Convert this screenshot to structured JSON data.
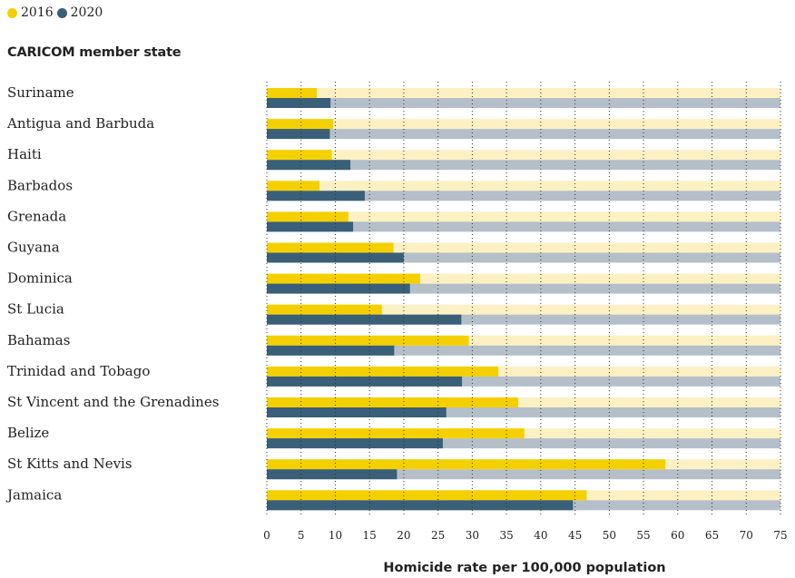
{
  "chart_data": {
    "type": "bar",
    "orientation": "horizontal",
    "category_heading": "CARICOM member state",
    "xlabel": "Homicide rate per 100,000 population",
    "xlim": [
      0,
      75
    ],
    "xticks": [
      0,
      5,
      10,
      15,
      20,
      25,
      30,
      35,
      40,
      45,
      50,
      55,
      60,
      65,
      70,
      75
    ],
    "legend_position": "top-left",
    "grid": "vertical dotted",
    "categories": [
      "Suriname",
      "Antigua and Barbuda",
      "Haiti",
      "Barbados",
      "Grenada",
      "Guyana",
      "Dominica",
      "St Lucia",
      "Bahamas",
      "Trinidad and Tobago",
      "St Vincent and the Grenadines",
      "Belize",
      "St Kitts and Nevis",
      "Jamaica"
    ],
    "series": [
      {
        "name": "2016",
        "color": "#f5d000",
        "track_color": "#fdf0c2",
        "values": [
          7.3,
          9.7,
          9.5,
          7.7,
          11.9,
          18.5,
          22.4,
          16.8,
          29.5,
          33.8,
          36.7,
          37.6,
          58.2,
          46.7
        ]
      },
      {
        "name": "2020",
        "color": "#3a5f78",
        "track_color": "#b4bfc9",
        "values": [
          9.3,
          9.2,
          12.2,
          14.3,
          12.6,
          20.0,
          20.9,
          28.4,
          18.6,
          28.5,
          26.2,
          25.7,
          19.0,
          44.7
        ]
      }
    ]
  }
}
